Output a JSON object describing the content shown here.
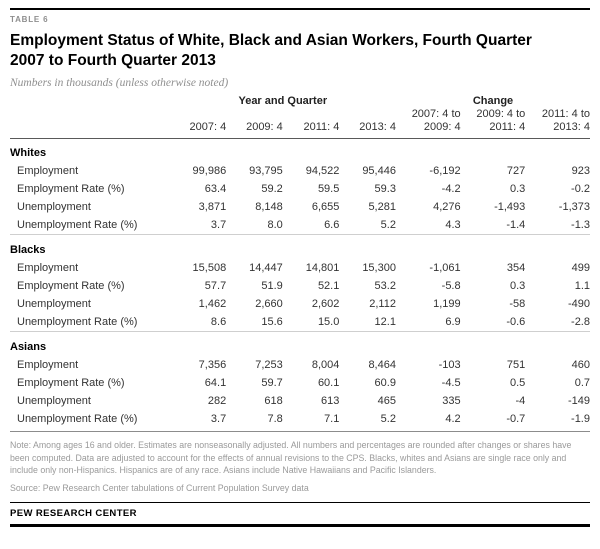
{
  "table_label": "TABLE 6",
  "title": "Employment Status of White, Black and Asian Workers, Fourth Quarter 2007 to Fourth Quarter 2013",
  "subtitle": "Numbers in thousands (unless otherwise noted)",
  "note": "Note: Among ages 16 and older. Estimates are nonseasonally adjusted. All numbers and percentages are rounded after changes or shares have been computed. Data are adjusted to account for the effects of annual revisions to the CPS. Blacks, whites and Asians are single race only and include only non-Hispanics. Hispanics are of any race. Asians include Native Hawaiians and Pacific Islanders.",
  "source": "Source: Pew Research Center tabulations of Current Population Survey data",
  "footer": "PEW RESEARCH CENTER",
  "colors": {
    "rule_black": "#000000",
    "header_rule": "#595959",
    "section_separator": "#cfcfcf",
    "muted_gray": "#9a9a9a"
  },
  "chart_data": {
    "type": "table",
    "title": "Employment Status of White, Black and Asian Workers, Fourth Quarter 2007 to Fourth Quarter 2013",
    "units": "Numbers in thousands (unless otherwise noted)",
    "column_groups": [
      {
        "label": "Year and Quarter",
        "span": 4
      },
      {
        "label": "Change",
        "span": 3
      }
    ],
    "columns": [
      "2007: 4",
      "2009: 4",
      "2011: 4",
      "2013: 4",
      "2007: 4 to\n2009: 4",
      "2009: 4 to\n2011: 4",
      "2011: 4 to\n2013: 4"
    ],
    "sections": [
      {
        "name": "Whites",
        "rows": [
          {
            "label": "Employment",
            "values": [
              "99,986",
              "93,795",
              "94,522",
              "95,446",
              "-6,192",
              "727",
              "923"
            ]
          },
          {
            "label": "Employment Rate (%)",
            "values": [
              "63.4",
              "59.2",
              "59.5",
              "59.3",
              "-4.2",
              "0.3",
              "-0.2"
            ]
          },
          {
            "label": "Unemployment",
            "values": [
              "3,871",
              "8,148",
              "6,655",
              "5,281",
              "4,276",
              "-1,493",
              "-1,373"
            ]
          },
          {
            "label": "Unemployment Rate (%)",
            "values": [
              "3.7",
              "8.0",
              "6.6",
              "5.2",
              "4.3",
              "-1.4",
              "-1.3"
            ]
          }
        ]
      },
      {
        "name": "Blacks",
        "rows": [
          {
            "label": "Employment",
            "values": [
              "15,508",
              "14,447",
              "14,801",
              "15,300",
              "-1,061",
              "354",
              "499"
            ]
          },
          {
            "label": "Employment Rate (%)",
            "values": [
              "57.7",
              "51.9",
              "52.1",
              "53.2",
              "-5.8",
              "0.3",
              "1.1"
            ]
          },
          {
            "label": "Unemployment",
            "values": [
              "1,462",
              "2,660",
              "2,602",
              "2,112",
              "1,199",
              "-58",
              "-490"
            ]
          },
          {
            "label": "Unemployment Rate (%)",
            "values": [
              "8.6",
              "15.6",
              "15.0",
              "12.1",
              "6.9",
              "-0.6",
              "-2.8"
            ]
          }
        ]
      },
      {
        "name": "Asians",
        "rows": [
          {
            "label": "Employment",
            "values": [
              "7,356",
              "7,253",
              "8,004",
              "8,464",
              "-103",
              "751",
              "460"
            ]
          },
          {
            "label": "Employment Rate (%)",
            "values": [
              "64.1",
              "59.7",
              "60.1",
              "60.9",
              "-4.5",
              "0.5",
              "0.7"
            ]
          },
          {
            "label": "Unemployment",
            "values": [
              "282",
              "618",
              "613",
              "465",
              "335",
              "-4",
              "-149"
            ]
          },
          {
            "label": "Unemployment Rate (%)",
            "values": [
              "3.7",
              "7.8",
              "7.1",
              "5.2",
              "4.2",
              "-0.7",
              "-1.9"
            ]
          }
        ]
      }
    ]
  }
}
